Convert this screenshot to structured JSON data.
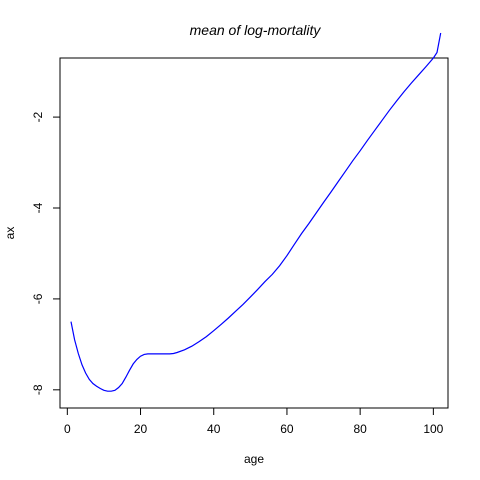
{
  "chart_data": {
    "type": "line",
    "title": "mean of log-mortality",
    "xlabel": "age",
    "ylabel": "ax",
    "xlim": [
      -2,
      104
    ],
    "ylim": [
      -8.4,
      -0.7
    ],
    "xticks": [
      0,
      20,
      40,
      60,
      80,
      100
    ],
    "yticks": [
      -8,
      -6,
      -4,
      -2
    ],
    "xtick_labels": [
      "0",
      "20",
      "40",
      "60",
      "80",
      "100"
    ],
    "ytick_labels": [
      "-8",
      "-6",
      "-4",
      "-2"
    ],
    "grid": false,
    "line_color": "#0000ff",
    "series": [
      {
        "x": [
          1,
          2,
          3,
          4,
          5,
          6,
          7,
          8,
          9,
          10,
          11,
          12,
          13,
          14,
          15,
          16,
          17,
          18,
          19,
          20,
          21,
          22,
          23,
          24,
          25,
          26,
          27,
          28,
          29,
          30,
          32,
          34,
          36,
          38,
          40,
          42,
          44,
          46,
          48,
          50,
          52,
          54,
          56,
          58,
          60,
          62,
          64,
          66,
          68,
          70,
          72,
          74,
          76,
          78,
          80,
          82,
          84,
          86,
          88,
          90,
          92,
          94,
          96,
          98,
          100,
          101,
          102
        ],
        "y": [
          -6.5,
          -6.9,
          -7.2,
          -7.45,
          -7.63,
          -7.77,
          -7.86,
          -7.92,
          -7.97,
          -8.01,
          -8.03,
          -8.03,
          -8.01,
          -7.95,
          -7.86,
          -7.72,
          -7.57,
          -7.43,
          -7.33,
          -7.26,
          -7.22,
          -7.21,
          -7.21,
          -7.21,
          -7.21,
          -7.21,
          -7.21,
          -7.21,
          -7.2,
          -7.18,
          -7.12,
          -7.04,
          -6.94,
          -6.83,
          -6.7,
          -6.56,
          -6.42,
          -6.27,
          -6.12,
          -5.96,
          -5.79,
          -5.62,
          -5.46,
          -5.27,
          -5.05,
          -4.8,
          -4.56,
          -4.34,
          -4.11,
          -3.88,
          -3.65,
          -3.42,
          -3.19,
          -2.96,
          -2.74,
          -2.51,
          -2.29,
          -2.07,
          -1.85,
          -1.64,
          -1.44,
          -1.25,
          -1.07,
          -0.89,
          -0.7,
          -0.58,
          -0.15
        ]
      }
    ]
  }
}
